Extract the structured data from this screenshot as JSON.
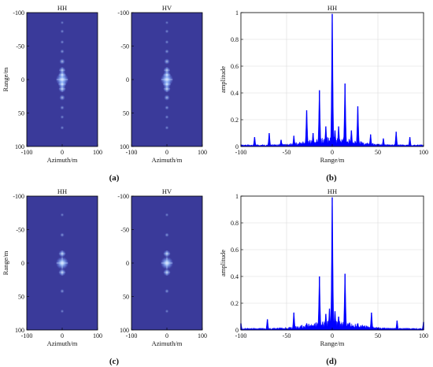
{
  "panel_labels": [
    "(a)",
    "(b)",
    "(c)",
    "(d)"
  ],
  "chart_data": [
    {
      "panel": "(a)",
      "type": "heatmap",
      "subplots": [
        {
          "title": "HH",
          "xlabel": "Azimuth/m",
          "ylabel": "Range/m",
          "xlim": [
            -100,
            100
          ],
          "ylim": [
            -100,
            100
          ],
          "y_reversed": true,
          "xticks": [
            -100,
            0,
            100
          ],
          "yticks": [
            -100,
            -50,
            0,
            50,
            100
          ],
          "background_color": "#3a3a9a",
          "points": [
            {
              "x": 0,
              "y": 0,
              "v": 1.0
            },
            {
              "x": 0,
              "y": -7,
              "v": 0.5
            },
            {
              "x": 0,
              "y": 7,
              "v": 0.55
            },
            {
              "x": 0,
              "y": -14,
              "v": 0.4
            },
            {
              "x": 0,
              "y": 14,
              "v": 0.45
            },
            {
              "x": 0,
              "y": -27,
              "v": 0.3
            },
            {
              "x": 0,
              "y": 27,
              "v": 0.3
            },
            {
              "x": 0,
              "y": -42,
              "v": 0.15
            },
            {
              "x": 0,
              "y": 42,
              "v": 0.15
            },
            {
              "x": 0,
              "y": -56,
              "v": 0.1
            },
            {
              "x": 0,
              "y": 56,
              "v": 0.1
            },
            {
              "x": 0,
              "y": -72,
              "v": 0.1
            },
            {
              "x": 0,
              "y": 72,
              "v": 0.1
            },
            {
              "x": 0,
              "y": -85,
              "v": 0.06
            }
          ]
        },
        {
          "title": "HV",
          "xlabel": "Azimuth/m",
          "ylabel": "",
          "xlim": [
            -100,
            100
          ],
          "ylim": [
            -100,
            100
          ],
          "y_reversed": true,
          "xticks": [
            -100,
            0,
            100
          ],
          "yticks": [
            -100,
            -50,
            0,
            50,
            100
          ],
          "background_color": "#3a3a9a",
          "points": [
            {
              "x": 0,
              "y": 0,
              "v": 1.0
            },
            {
              "x": 0,
              "y": -7,
              "v": 0.5
            },
            {
              "x": 0,
              "y": 7,
              "v": 0.55
            },
            {
              "x": 0,
              "y": -14,
              "v": 0.4
            },
            {
              "x": 0,
              "y": 14,
              "v": 0.45
            },
            {
              "x": 0,
              "y": -27,
              "v": 0.3
            },
            {
              "x": 0,
              "y": 27,
              "v": 0.3
            },
            {
              "x": 0,
              "y": -42,
              "v": 0.15
            },
            {
              "x": 0,
              "y": 42,
              "v": 0.15
            },
            {
              "x": 0,
              "y": -56,
              "v": 0.1
            },
            {
              "x": 0,
              "y": 56,
              "v": 0.1
            },
            {
              "x": 0,
              "y": -72,
              "v": 0.1
            },
            {
              "x": 0,
              "y": 72,
              "v": 0.1
            },
            {
              "x": 0,
              "y": -85,
              "v": 0.06
            }
          ]
        }
      ]
    },
    {
      "panel": "(b)",
      "type": "area",
      "title": "HH",
      "xlabel": "Range/m",
      "ylabel": "amplitude",
      "xlim": [
        -100,
        100
      ],
      "ylim": [
        0,
        1
      ],
      "xticks": [
        -100,
        -50,
        0,
        50,
        100
      ],
      "yticks": [
        0,
        0.2,
        0.4,
        0.6,
        0.8,
        1
      ],
      "grid": true,
      "color": "#0000ff",
      "peaks": [
        {
          "x": -85,
          "y": 0.07
        },
        {
          "x": -69,
          "y": 0.1
        },
        {
          "x": -56,
          "y": 0.05
        },
        {
          "x": -42,
          "y": 0.08
        },
        {
          "x": -28,
          "y": 0.27
        },
        {
          "x": -21,
          "y": 0.1
        },
        {
          "x": -14,
          "y": 0.42
        },
        {
          "x": -7,
          "y": 0.15
        },
        {
          "x": 0,
          "y": 0.99
        },
        {
          "x": 3,
          "y": 0.12
        },
        {
          "x": 7,
          "y": 0.15
        },
        {
          "x": 14,
          "y": 0.47
        },
        {
          "x": 21,
          "y": 0.12
        },
        {
          "x": 28,
          "y": 0.3
        },
        {
          "x": 42,
          "y": 0.09
        },
        {
          "x": 56,
          "y": 0.06
        },
        {
          "x": 70,
          "y": 0.11
        },
        {
          "x": 85,
          "y": 0.07
        }
      ]
    },
    {
      "panel": "(c)",
      "type": "heatmap",
      "subplots": [
        {
          "title": "HH",
          "xlabel": "Azimuth/m",
          "ylabel": "Range/m",
          "xlim": [
            -100,
            100
          ],
          "ylim": [
            -100,
            100
          ],
          "y_reversed": true,
          "xticks": [
            -100,
            0,
            100
          ],
          "yticks": [
            -100,
            -50,
            0,
            50,
            100
          ],
          "background_color": "#3a3a9a",
          "points": [
            {
              "x": 0,
              "y": 0,
              "v": 1.0
            },
            {
              "x": 0,
              "y": -14,
              "v": 0.45
            },
            {
              "x": 0,
              "y": 14,
              "v": 0.45
            },
            {
              "x": 0,
              "y": -42,
              "v": 0.15
            },
            {
              "x": 0,
              "y": 42,
              "v": 0.15
            },
            {
              "x": 0,
              "y": -72,
              "v": 0.08
            },
            {
              "x": 0,
              "y": 72,
              "v": 0.08
            }
          ]
        },
        {
          "title": "HV",
          "xlabel": "Azimuth/m",
          "ylabel": "",
          "xlim": [
            -100,
            100
          ],
          "ylim": [
            -100,
            100
          ],
          "y_reversed": true,
          "xticks": [
            -100,
            0,
            100
          ],
          "yticks": [
            -100,
            -50,
            0,
            50,
            100
          ],
          "background_color": "#3a3a9a",
          "points": [
            {
              "x": 0,
              "y": 0,
              "v": 1.0
            },
            {
              "x": 0,
              "y": -14,
              "v": 0.45
            },
            {
              "x": 0,
              "y": 14,
              "v": 0.45
            },
            {
              "x": 0,
              "y": -42,
              "v": 0.15
            },
            {
              "x": 0,
              "y": 42,
              "v": 0.15
            },
            {
              "x": 0,
              "y": -72,
              "v": 0.08
            },
            {
              "x": 0,
              "y": 72,
              "v": 0.08
            }
          ]
        }
      ]
    },
    {
      "panel": "(d)",
      "type": "area",
      "title": "HH",
      "xlabel": "Range/m",
      "ylabel": "amplitude",
      "xlim": [
        -100,
        100
      ],
      "ylim": [
        0,
        1
      ],
      "xticks": [
        -100,
        -50,
        0,
        50,
        100
      ],
      "yticks": [
        0,
        0.2,
        0.4,
        0.6,
        0.8,
        1
      ],
      "grid": true,
      "color": "#0000ff",
      "peaks": [
        {
          "x": -100,
          "y": 0.05
        },
        {
          "x": -71,
          "y": 0.08
        },
        {
          "x": -42,
          "y": 0.13
        },
        {
          "x": -28,
          "y": 0.05
        },
        {
          "x": -14,
          "y": 0.4
        },
        {
          "x": -7,
          "y": 0.12
        },
        {
          "x": -3,
          "y": 0.16
        },
        {
          "x": 0,
          "y": 0.99
        },
        {
          "x": 3,
          "y": 0.14
        },
        {
          "x": 7,
          "y": 0.1
        },
        {
          "x": 14,
          "y": 0.42
        },
        {
          "x": 28,
          "y": 0.05
        },
        {
          "x": 43,
          "y": 0.13
        },
        {
          "x": 71,
          "y": 0.07
        },
        {
          "x": 100,
          "y": 0.06
        }
      ]
    }
  ]
}
